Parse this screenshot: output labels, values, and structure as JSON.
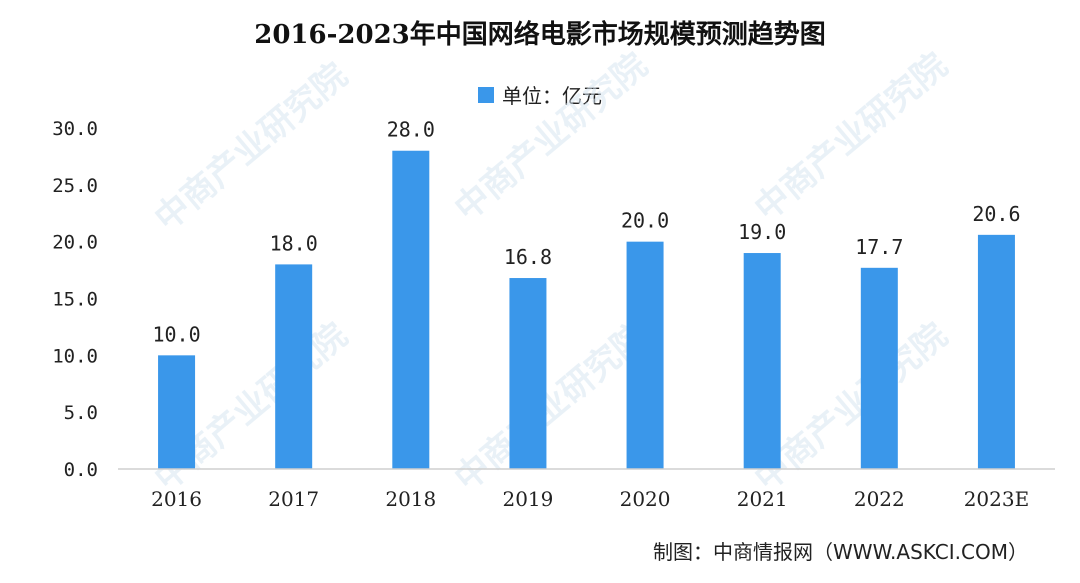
{
  "chart_data": {
    "type": "bar",
    "title": "2016-2023年中国网络电影市场规模预测趋势图",
    "categories": [
      "2016",
      "2017",
      "2018",
      "2019",
      "2020",
      "2021",
      "2022",
      "2023E"
    ],
    "series": [
      {
        "name": "单位：亿元",
        "values": [
          10.0,
          18.0,
          28.0,
          16.8,
          20.0,
          19.0,
          17.7,
          20.6
        ]
      }
    ],
    "data_labels": [
      "10.0",
      "18.0",
      "28.0",
      "16.8",
      "20.0",
      "19.0",
      "17.7",
      "20.6"
    ],
    "yticks": [
      "0.0",
      "5.0",
      "10.0",
      "15.0",
      "20.0",
      "25.0",
      "30.0"
    ],
    "ylim": [
      0,
      30
    ],
    "xlabel": "",
    "ylabel": "",
    "grid": false,
    "legend_position": "top-center",
    "bar_color": "#3a97ea"
  },
  "source_text": "制图：中商情报网（WWW.ASKCI.COM）",
  "watermark_text": "中商产业研究院"
}
